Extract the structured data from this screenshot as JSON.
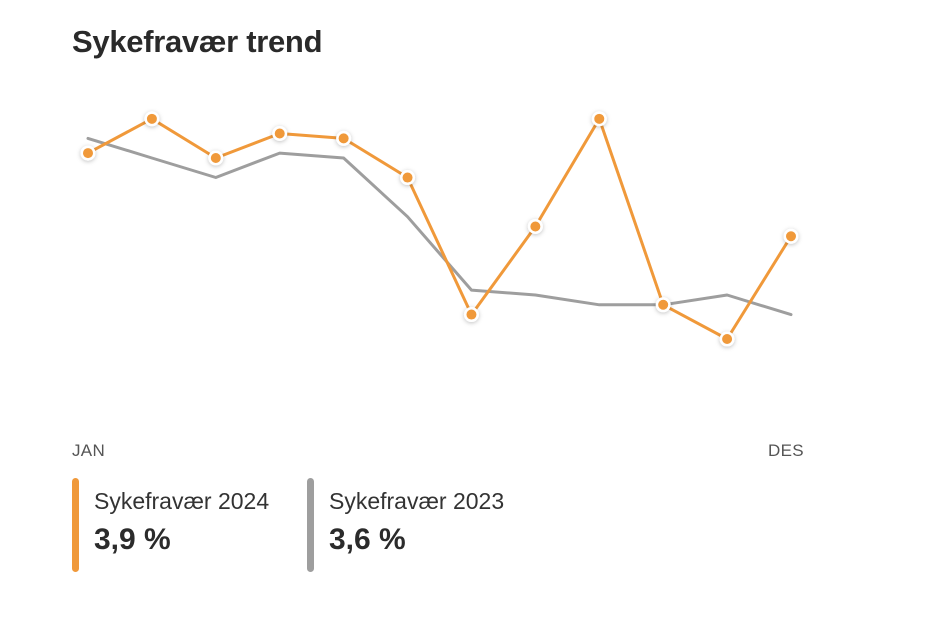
{
  "title": "Sykefravær trend",
  "colors": {
    "series_2024": "#f0993a",
    "series_2023": "#9e9e9e"
  },
  "axis": {
    "start_label": "JAN",
    "end_label": "DES"
  },
  "legend": [
    {
      "name": "Sykefravær 2024",
      "value": "3,9 %"
    },
    {
      "name": "Sykefravær 2023",
      "value": "3,6 %"
    }
  ],
  "chart_data": {
    "type": "line",
    "x": [
      "JAN",
      "",
      "",
      "",
      "",
      "",
      "",
      "",
      "",
      "",
      "",
      "DES"
    ],
    "series": [
      {
        "name": "Sykefravær 2024",
        "values": [
          5.7,
          6.4,
          5.6,
          6.1,
          6.0,
          5.2,
          2.4,
          4.2,
          6.4,
          2.6,
          1.9,
          4.0
        ],
        "color": "#f0993a",
        "markers": true
      },
      {
        "name": "Sykefravær 2023",
        "values": [
          6.0,
          5.6,
          5.2,
          5.7,
          5.6,
          4.4,
          2.9,
          2.8,
          2.6,
          2.6,
          2.8,
          2.4
        ],
        "color": "#9e9e9e",
        "markers": false
      }
    ],
    "ylim": [
      0,
      7.5
    ],
    "grid": false,
    "legend": "bottom"
  }
}
